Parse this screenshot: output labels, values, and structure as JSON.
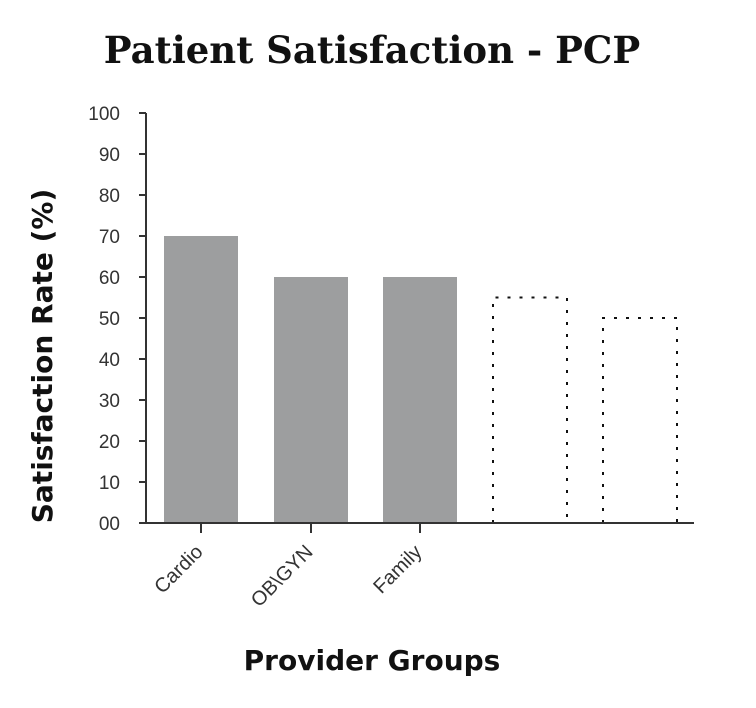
{
  "colors": {
    "bar_fill": "#9d9e9f",
    "axis": "#333333",
    "placeholder_border": "#111111",
    "text": "#111111"
  },
  "chart_data": {
    "type": "bar",
    "title": "Patient Satisfaction - PCP",
    "xlabel": "Provider Groups",
    "ylabel": "Satisfaction Rate (%)",
    "ylim": [
      0,
      100
    ],
    "y_ticks": [
      "00",
      "10",
      "20",
      "30",
      "40",
      "50",
      "60",
      "70",
      "80",
      "90",
      "100"
    ],
    "y_tick_values": [
      0,
      10,
      20,
      30,
      40,
      50,
      60,
      70,
      80,
      90,
      100
    ],
    "categories": [
      "Cardio",
      "OB\\GYN",
      "Family",
      "",
      ""
    ],
    "values": [
      70,
      60,
      60,
      55,
      50
    ],
    "bar_styles": [
      "solid",
      "solid",
      "solid",
      "dotted-outline",
      "dotted-outline"
    ],
    "grid": false,
    "legend": "none"
  }
}
